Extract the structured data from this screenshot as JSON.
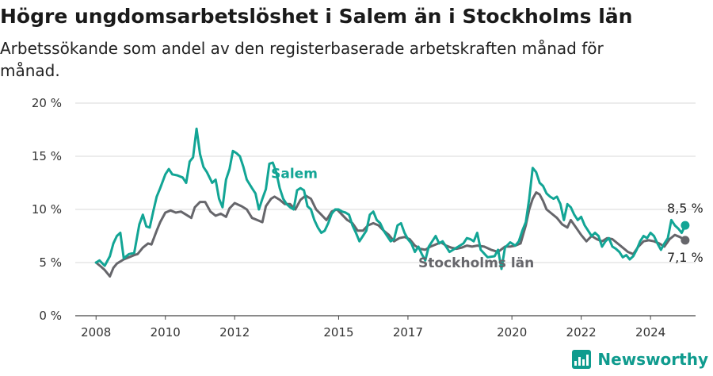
{
  "header": {
    "title": "Högre ungdomsarbetslöshet i Salem än i Stockholms län",
    "subtitle": "Arbetssökande som andel av den registerbaserade arbetskraften månad för månad."
  },
  "brand": {
    "name": "Newsworthy",
    "icon": "newsworthy-logo-icon",
    "color": "#0f9b8e"
  },
  "chart_data": {
    "type": "line",
    "ylim": [
      0,
      20
    ],
    "y_ticks": [
      0,
      5,
      10,
      15,
      20
    ],
    "y_tick_labels": [
      "0 %",
      "5 %",
      "10 %",
      "15 %",
      "20 %"
    ],
    "xlim": [
      2007.4,
      2025.3
    ],
    "x_ticks": [
      2008,
      2010,
      2012,
      2015,
      2017,
      2020,
      2022,
      2024
    ],
    "x_tick_labels": [
      "2008",
      "2010",
      "2012",
      "2015",
      "2017",
      "2020",
      "2022",
      "2024"
    ],
    "grid": true,
    "series": [
      {
        "name": "Salem",
        "color": "#12a595",
        "end_label": "8,5 %",
        "points": [
          [
            2008.0,
            5.0
          ],
          [
            2008.1,
            5.2
          ],
          [
            2008.25,
            4.7
          ],
          [
            2008.4,
            5.6
          ],
          [
            2008.5,
            6.8
          ],
          [
            2008.6,
            7.5
          ],
          [
            2008.7,
            7.8
          ],
          [
            2008.8,
            5.4
          ],
          [
            2008.95,
            5.8
          ],
          [
            2009.1,
            5.9
          ],
          [
            2009.25,
            8.6
          ],
          [
            2009.35,
            9.5
          ],
          [
            2009.45,
            8.4
          ],
          [
            2009.55,
            8.3
          ],
          [
            2009.65,
            9.8
          ],
          [
            2009.75,
            11.2
          ],
          [
            2009.85,
            12.0
          ],
          [
            2010.0,
            13.3
          ],
          [
            2010.1,
            13.8
          ],
          [
            2010.2,
            13.3
          ],
          [
            2010.35,
            13.2
          ],
          [
            2010.5,
            13.0
          ],
          [
            2010.6,
            12.5
          ],
          [
            2010.7,
            14.5
          ],
          [
            2010.8,
            14.9
          ],
          [
            2010.9,
            17.6
          ],
          [
            2011.0,
            15.2
          ],
          [
            2011.1,
            14.0
          ],
          [
            2011.2,
            13.5
          ],
          [
            2011.35,
            12.5
          ],
          [
            2011.45,
            12.8
          ],
          [
            2011.55,
            11.0
          ],
          [
            2011.65,
            10.2
          ],
          [
            2011.75,
            12.8
          ],
          [
            2011.85,
            13.8
          ],
          [
            2011.95,
            15.5
          ],
          [
            2012.05,
            15.3
          ],
          [
            2012.15,
            15.0
          ],
          [
            2012.25,
            14.0
          ],
          [
            2012.35,
            12.8
          ],
          [
            2012.5,
            12.0
          ],
          [
            2012.6,
            11.5
          ],
          [
            2012.7,
            10.0
          ],
          [
            2012.8,
            11.0
          ],
          [
            2012.9,
            11.9
          ],
          [
            2013.0,
            14.3
          ],
          [
            2013.1,
            14.4
          ],
          [
            2013.2,
            13.5
          ],
          [
            2013.3,
            12.0
          ],
          [
            2013.4,
            11.0
          ],
          [
            2013.5,
            10.5
          ],
          [
            2013.6,
            10.2
          ],
          [
            2013.7,
            10.0
          ],
          [
            2013.8,
            11.8
          ],
          [
            2013.9,
            12.0
          ],
          [
            2014.0,
            11.8
          ],
          [
            2014.1,
            10.3
          ],
          [
            2014.2,
            10.0
          ],
          [
            2014.3,
            9.0
          ],
          [
            2014.4,
            8.3
          ],
          [
            2014.5,
            7.8
          ],
          [
            2014.6,
            8.0
          ],
          [
            2014.7,
            8.7
          ],
          [
            2014.8,
            9.6
          ],
          [
            2014.9,
            10.0
          ],
          [
            2015.0,
            10.0
          ],
          [
            2015.1,
            9.8
          ],
          [
            2015.2,
            9.7
          ],
          [
            2015.3,
            9.5
          ],
          [
            2015.4,
            8.5
          ],
          [
            2015.5,
            7.8
          ],
          [
            2015.6,
            7.0
          ],
          [
            2015.7,
            7.5
          ],
          [
            2015.8,
            8.0
          ],
          [
            2015.9,
            9.5
          ],
          [
            2016.0,
            9.8
          ],
          [
            2016.1,
            9.0
          ],
          [
            2016.2,
            8.7
          ],
          [
            2016.3,
            8.0
          ],
          [
            2016.4,
            7.5
          ],
          [
            2016.5,
            7.0
          ],
          [
            2016.6,
            7.2
          ],
          [
            2016.7,
            8.5
          ],
          [
            2016.8,
            8.7
          ],
          [
            2016.9,
            7.8
          ],
          [
            2017.0,
            7.2
          ],
          [
            2017.1,
            6.8
          ],
          [
            2017.2,
            6.0
          ],
          [
            2017.3,
            6.5
          ],
          [
            2017.4,
            5.8
          ],
          [
            2017.5,
            5.2
          ],
          [
            2017.6,
            6.5
          ],
          [
            2017.7,
            7.0
          ],
          [
            2017.8,
            7.5
          ],
          [
            2017.9,
            6.8
          ],
          [
            2018.0,
            7.0
          ],
          [
            2018.1,
            6.5
          ],
          [
            2018.2,
            6.0
          ],
          [
            2018.35,
            6.3
          ],
          [
            2018.5,
            6.6
          ],
          [
            2018.6,
            6.8
          ],
          [
            2018.7,
            7.3
          ],
          [
            2018.8,
            7.2
          ],
          [
            2018.9,
            7.0
          ],
          [
            2019.0,
            7.8
          ],
          [
            2019.1,
            6.2
          ],
          [
            2019.3,
            5.5
          ],
          [
            2019.5,
            5.6
          ],
          [
            2019.6,
            6.2
          ],
          [
            2019.7,
            4.4
          ],
          [
            2019.8,
            6.4
          ],
          [
            2019.95,
            6.9
          ],
          [
            2020.1,
            6.6
          ],
          [
            2020.2,
            7.0
          ],
          [
            2020.3,
            8.0
          ],
          [
            2020.4,
            8.8
          ],
          [
            2020.5,
            11.0
          ],
          [
            2020.6,
            13.9
          ],
          [
            2020.7,
            13.5
          ],
          [
            2020.8,
            12.5
          ],
          [
            2020.9,
            12.2
          ],
          [
            2021.0,
            11.5
          ],
          [
            2021.1,
            11.2
          ],
          [
            2021.2,
            11.0
          ],
          [
            2021.3,
            11.2
          ],
          [
            2021.4,
            10.5
          ],
          [
            2021.5,
            9.0
          ],
          [
            2021.6,
            10.5
          ],
          [
            2021.7,
            10.2
          ],
          [
            2021.8,
            9.5
          ],
          [
            2021.9,
            9.0
          ],
          [
            2022.0,
            9.3
          ],
          [
            2022.1,
            8.5
          ],
          [
            2022.2,
            8.0
          ],
          [
            2022.3,
            7.5
          ],
          [
            2022.4,
            7.8
          ],
          [
            2022.5,
            7.5
          ],
          [
            2022.6,
            6.5
          ],
          [
            2022.7,
            7.0
          ],
          [
            2022.8,
            7.3
          ],
          [
            2022.9,
            6.5
          ],
          [
            2023.0,
            6.3
          ],
          [
            2023.1,
            6.0
          ],
          [
            2023.2,
            5.5
          ],
          [
            2023.3,
            5.7
          ],
          [
            2023.4,
            5.3
          ],
          [
            2023.5,
            5.6
          ],
          [
            2023.6,
            6.2
          ],
          [
            2023.7,
            7.0
          ],
          [
            2023.8,
            7.5
          ],
          [
            2023.9,
            7.3
          ],
          [
            2024.0,
            7.8
          ],
          [
            2024.1,
            7.5
          ],
          [
            2024.2,
            6.8
          ],
          [
            2024.3,
            6.2
          ],
          [
            2024.4,
            6.8
          ],
          [
            2024.5,
            7.3
          ],
          [
            2024.6,
            9.0
          ],
          [
            2024.7,
            8.5
          ],
          [
            2024.8,
            8.2
          ],
          [
            2024.9,
            7.8
          ],
          [
            2025.0,
            8.5
          ]
        ]
      },
      {
        "name": "Stockholms län",
        "color": "#66666b",
        "end_label": "7,1 %",
        "points": [
          [
            2008.0,
            5.0
          ],
          [
            2008.15,
            4.6
          ],
          [
            2008.25,
            4.3
          ],
          [
            2008.4,
            3.7
          ],
          [
            2008.5,
            4.5
          ],
          [
            2008.6,
            4.9
          ],
          [
            2008.8,
            5.3
          ],
          [
            2008.95,
            5.5
          ],
          [
            2009.1,
            5.7
          ],
          [
            2009.2,
            5.8
          ],
          [
            2009.35,
            6.4
          ],
          [
            2009.5,
            6.8
          ],
          [
            2009.6,
            6.7
          ],
          [
            2009.75,
            8.0
          ],
          [
            2009.85,
            8.8
          ],
          [
            2010.0,
            9.7
          ],
          [
            2010.15,
            9.9
          ],
          [
            2010.3,
            9.7
          ],
          [
            2010.45,
            9.8
          ],
          [
            2010.6,
            9.5
          ],
          [
            2010.75,
            9.2
          ],
          [
            2010.85,
            10.2
          ],
          [
            2011.0,
            10.7
          ],
          [
            2011.15,
            10.7
          ],
          [
            2011.3,
            9.8
          ],
          [
            2011.45,
            9.4
          ],
          [
            2011.6,
            9.6
          ],
          [
            2011.75,
            9.3
          ],
          [
            2011.85,
            10.1
          ],
          [
            2012.0,
            10.6
          ],
          [
            2012.2,
            10.3
          ],
          [
            2012.35,
            10.0
          ],
          [
            2012.5,
            9.2
          ],
          [
            2012.65,
            9.0
          ],
          [
            2012.8,
            8.8
          ],
          [
            2012.9,
            10.3
          ],
          [
            2013.05,
            11.0
          ],
          [
            2013.15,
            11.2
          ],
          [
            2013.3,
            10.9
          ],
          [
            2013.45,
            10.5
          ],
          [
            2013.6,
            10.5
          ],
          [
            2013.75,
            10.0
          ],
          [
            2013.9,
            10.9
          ],
          [
            2014.05,
            11.3
          ],
          [
            2014.2,
            11.0
          ],
          [
            2014.35,
            10.0
          ],
          [
            2014.5,
            9.5
          ],
          [
            2014.65,
            9.0
          ],
          [
            2014.8,
            9.8
          ],
          [
            2014.95,
            10.0
          ],
          [
            2015.1,
            9.5
          ],
          [
            2015.25,
            9.0
          ],
          [
            2015.4,
            8.7
          ],
          [
            2015.55,
            8.0
          ],
          [
            2015.7,
            8.0
          ],
          [
            2015.85,
            8.5
          ],
          [
            2016.0,
            8.7
          ],
          [
            2016.15,
            8.5
          ],
          [
            2016.3,
            8.0
          ],
          [
            2016.45,
            7.6
          ],
          [
            2016.6,
            7.0
          ],
          [
            2016.75,
            7.3
          ],
          [
            2016.9,
            7.4
          ],
          [
            2017.05,
            7.2
          ],
          [
            2017.2,
            6.6
          ],
          [
            2017.35,
            6.3
          ],
          [
            2017.5,
            6.2
          ],
          [
            2017.65,
            6.5
          ],
          [
            2017.8,
            6.7
          ],
          [
            2017.95,
            6.9
          ],
          [
            2018.1,
            6.6
          ],
          [
            2018.25,
            6.4
          ],
          [
            2018.4,
            6.3
          ],
          [
            2018.55,
            6.4
          ],
          [
            2018.7,
            6.6
          ],
          [
            2018.85,
            6.5
          ],
          [
            2019.0,
            6.6
          ],
          [
            2019.2,
            6.5
          ],
          [
            2019.4,
            6.2
          ],
          [
            2019.6,
            6.0
          ],
          [
            2019.8,
            6.5
          ],
          [
            2019.95,
            6.5
          ],
          [
            2020.1,
            6.6
          ],
          [
            2020.25,
            6.8
          ],
          [
            2020.4,
            8.5
          ],
          [
            2020.5,
            10.0
          ],
          [
            2020.6,
            11.0
          ],
          [
            2020.7,
            11.6
          ],
          [
            2020.8,
            11.4
          ],
          [
            2020.9,
            10.8
          ],
          [
            2021.0,
            10.0
          ],
          [
            2021.15,
            9.6
          ],
          [
            2021.3,
            9.2
          ],
          [
            2021.45,
            8.6
          ],
          [
            2021.6,
            8.3
          ],
          [
            2021.7,
            9.0
          ],
          [
            2021.85,
            8.3
          ],
          [
            2022.0,
            7.6
          ],
          [
            2022.15,
            7.0
          ],
          [
            2022.3,
            7.5
          ],
          [
            2022.45,
            7.2
          ],
          [
            2022.6,
            7.0
          ],
          [
            2022.75,
            7.3
          ],
          [
            2022.9,
            7.2
          ],
          [
            2023.05,
            6.8
          ],
          [
            2023.2,
            6.4
          ],
          [
            2023.35,
            6.0
          ],
          [
            2023.5,
            5.8
          ],
          [
            2023.65,
            6.5
          ],
          [
            2023.8,
            7.0
          ],
          [
            2023.95,
            7.1
          ],
          [
            2024.1,
            7.0
          ],
          [
            2024.25,
            6.8
          ],
          [
            2024.4,
            6.5
          ],
          [
            2024.55,
            7.2
          ],
          [
            2024.7,
            7.6
          ],
          [
            2024.85,
            7.4
          ],
          [
            2025.0,
            7.1
          ]
        ]
      }
    ]
  }
}
